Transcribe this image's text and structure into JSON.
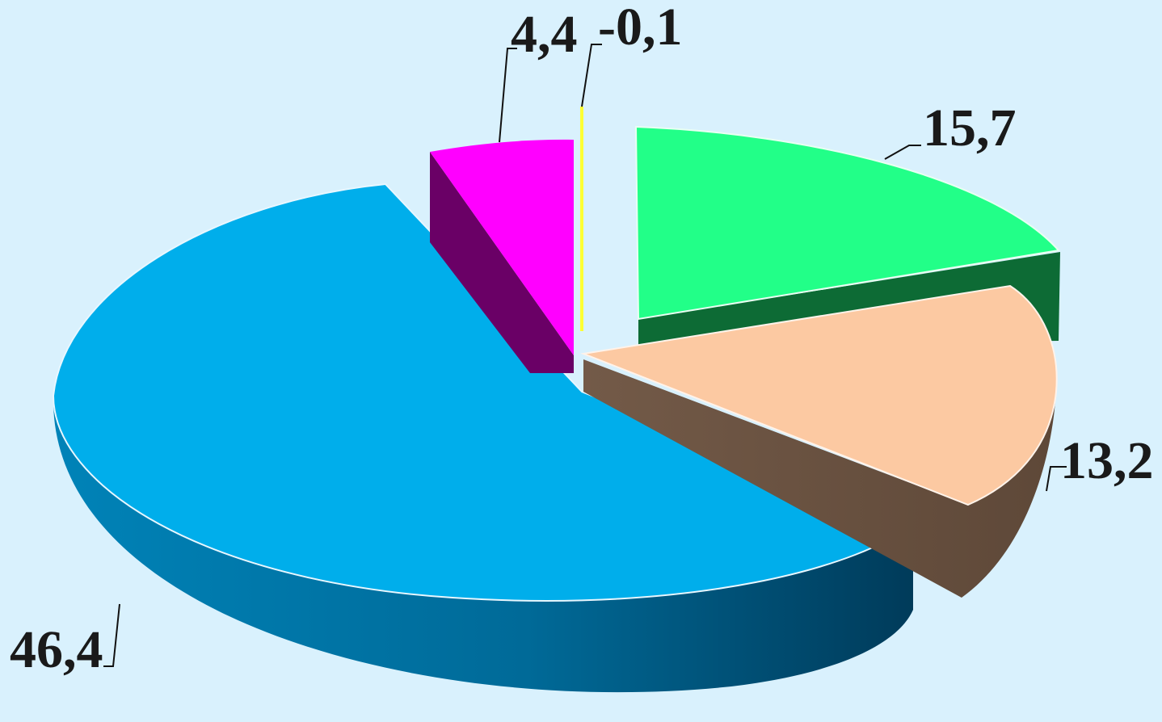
{
  "chart_data": {
    "type": "pie",
    "style": "3d-exploded",
    "title": "",
    "slices": [
      {
        "label": "15,7",
        "value": 15.7,
        "top_color": "#22ff88",
        "side_color": "#0d6b35"
      },
      {
        "label": "13,2",
        "value": 13.2,
        "top_color": "#fcc9a2",
        "side_color": "#6b5444"
      },
      {
        "label": "46,4",
        "value": 46.4,
        "top_color": "#00aeeb",
        "side_color": "#005a84"
      },
      {
        "label": "4,4",
        "value": 4.4,
        "top_color": "#ff00ff",
        "side_color": "#6a0066"
      },
      {
        "label": "-0,1",
        "value": -0.1,
        "top_color": "#ffff33",
        "side_color": "#888800"
      }
    ],
    "legend": "none",
    "background_color": "#d9f1fd"
  }
}
